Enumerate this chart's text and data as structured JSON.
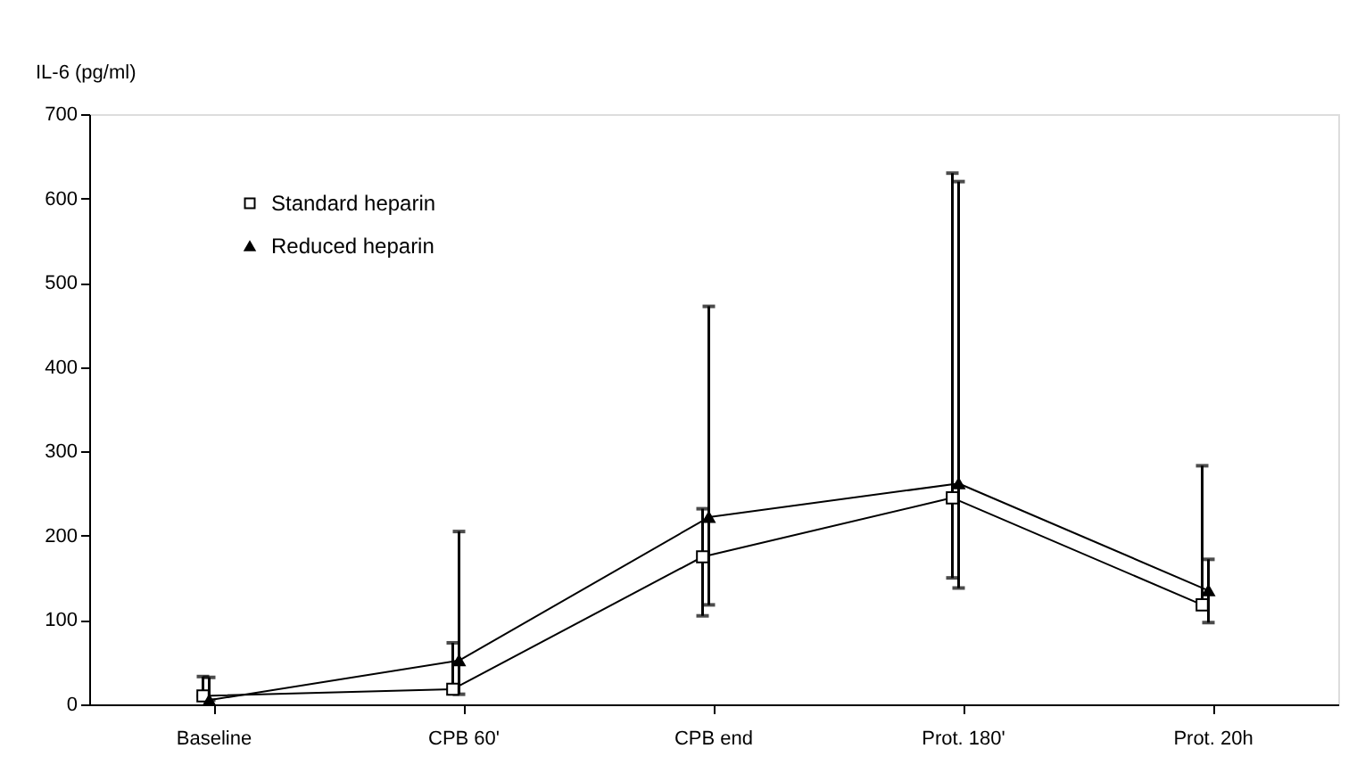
{
  "chart_data": {
    "type": "line",
    "ylabel": "IL-6 (pg/ml)",
    "categories": [
      "Baseline",
      "CPB 60'",
      "CPB end",
      "Prot. 180'",
      "Prot. 20h"
    ],
    "series": [
      {
        "name": "Standard heparin",
        "color": "#000000",
        "marker": "square",
        "values": [
          10,
          18,
          175,
          245,
          118
        ],
        "errors": [
          [
            10,
            33
          ],
          [
            18,
            73
          ],
          [
            105,
            232
          ],
          [
            150,
            630
          ],
          [
            118,
            283
          ]
        ]
      },
      {
        "name": "Reduced heparin",
        "color": "#000000",
        "marker": "triangle",
        "values": [
          5,
          52,
          222,
          262,
          135
        ],
        "errors": [
          [
            5,
            32
          ],
          [
            12,
            205
          ],
          [
            118,
            472
          ],
          [
            138,
            620
          ],
          [
            97,
            172
          ]
        ]
      }
    ],
    "ylim": [
      0,
      700
    ],
    "yticks": [
      0,
      100,
      200,
      300,
      400,
      500,
      600,
      700
    ],
    "grid": false,
    "legend": "top left",
    "line_style": "solid"
  }
}
